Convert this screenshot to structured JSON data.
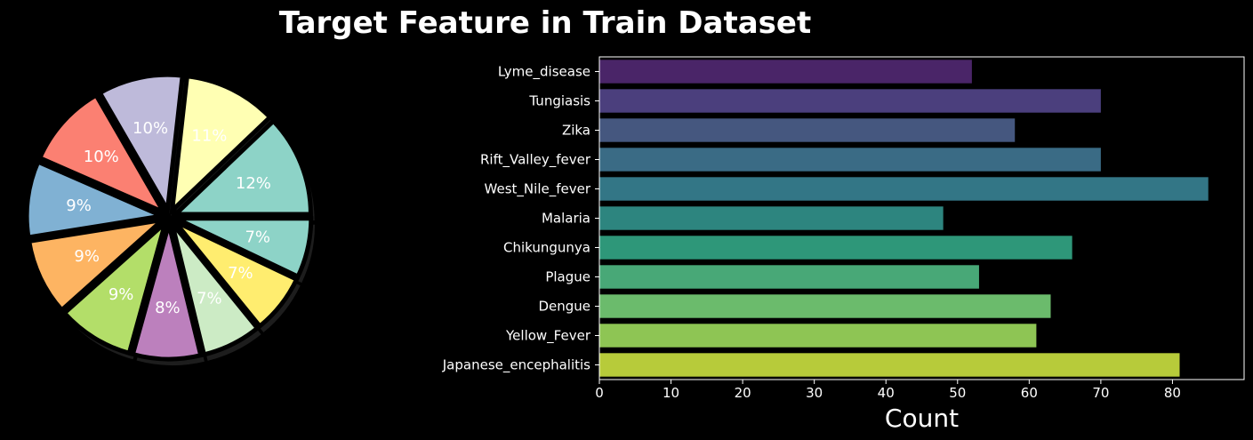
{
  "title": "Target Feature in Train Dataset",
  "chart_data": [
    {
      "type": "pie",
      "title": "",
      "slices": [
        {
          "label": "12%",
          "value": 12,
          "color": "#8dd3c7"
        },
        {
          "label": "11%",
          "value": 11,
          "color": "#ffffb3"
        },
        {
          "label": "10%",
          "value": 10,
          "color": "#bebada"
        },
        {
          "label": "10%",
          "value": 10,
          "color": "#fb8072"
        },
        {
          "label": "9%",
          "value": 9,
          "color": "#80b1d3"
        },
        {
          "label": "9%",
          "value": 9,
          "color": "#fdb462"
        },
        {
          "label": "9%",
          "value": 9,
          "color": "#b3de69"
        },
        {
          "label": "8%",
          "value": 8,
          "color": "#bc80bd"
        },
        {
          "label": "7%",
          "value": 7,
          "color": "#ccebc5"
        },
        {
          "label": "7%",
          "value": 7,
          "color": "#ffed6f"
        },
        {
          "label": "7%",
          "value": 7,
          "color": "#8dd3c7"
        }
      ]
    },
    {
      "type": "bar",
      "orientation": "horizontal",
      "categories": [
        "Lyme_disease",
        "Tungiasis",
        "Zika",
        "Rift_Valley_fever",
        "West_Nile_fever",
        "Malaria",
        "Chikungunya",
        "Plague",
        "Dengue",
        "Yellow_Fever",
        "Japanese_encephalitis"
      ],
      "values": [
        52,
        70,
        58,
        70,
        85,
        48,
        66,
        53,
        63,
        61,
        81
      ],
      "colors": [
        "#4a2568",
        "#4b3f7d",
        "#45577f",
        "#3a6b85",
        "#337686",
        "#2d857f",
        "#2e9779",
        "#48a877",
        "#6bbb6c",
        "#8ec554",
        "#b7cb3a"
      ],
      "xlabel": "Count",
      "ylabel": "",
      "xlim": [
        0,
        90
      ],
      "xticks": [
        0,
        10,
        20,
        30,
        40,
        50,
        60,
        70,
        80
      ],
      "grid": false
    }
  ]
}
